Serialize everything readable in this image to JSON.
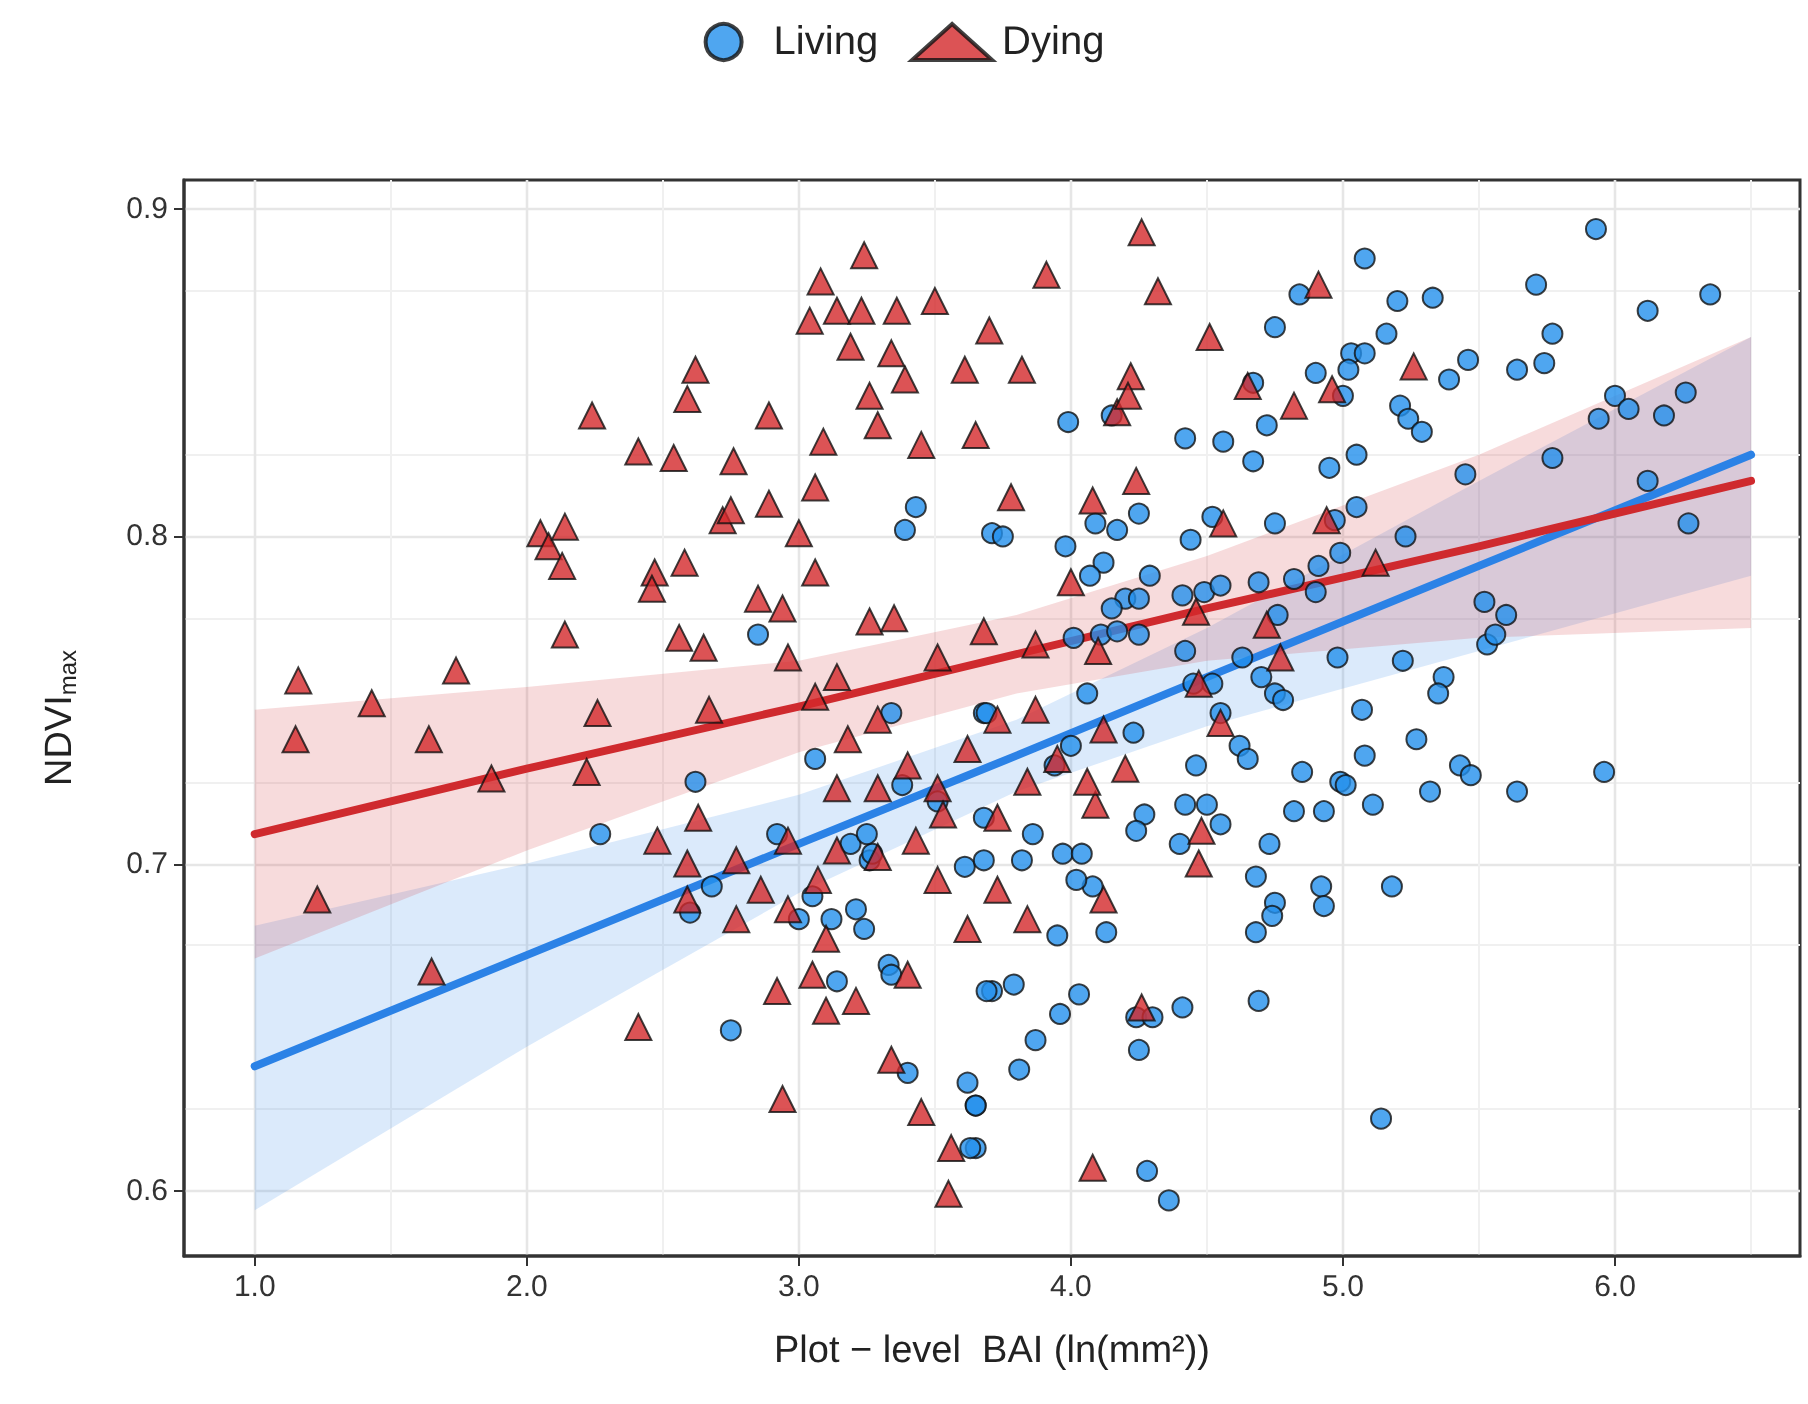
{
  "chart_data": {
    "type": "scatter",
    "xlabel": "Plot − level  BAI (ln(mm²))",
    "ylabel": "NDVI$_{max}$",
    "xlim": [
      0.74,
      6.68
    ],
    "ylim": [
      0.58,
      0.909
    ],
    "xticks": [
      {
        "value": 1,
        "label": "1.0"
      },
      {
        "value": 2,
        "label": "2.0"
      },
      {
        "value": 3,
        "label": "3.0"
      },
      {
        "value": 4,
        "label": "4.0"
      },
      {
        "value": 5,
        "label": "5.0"
      },
      {
        "value": 6,
        "label": "6.0"
      }
    ],
    "yticks": [
      0.6,
      0.7,
      0.8,
      0.9
    ],
    "grid": true,
    "legend": "top",
    "series": [
      {
        "name": "Living",
        "marker": "circle",
        "color": "#2390ec",
        "x": [
          2.27,
          2.62,
          2.75,
          2.85,
          3.43,
          3.39,
          5.93,
          5.08,
          5.71,
          5.33,
          6.35,
          6.12,
          5.2,
          4.84,
          4.75,
          5.16,
          5.77,
          5.03,
          5.08,
          5.02,
          4.9,
          5.46,
          5.64,
          5.74,
          5.39,
          4.67,
          5.0,
          5.21,
          5.24,
          5.29,
          6.0,
          5.94,
          6.05,
          6.18,
          6.26,
          3.99,
          4.15,
          4.42,
          4.56,
          4.72,
          4.67,
          4.95,
          5.05,
          5.77,
          5.45,
          6.12,
          6.27,
          5.05,
          4.97,
          5.23,
          4.75,
          4.99,
          4.91,
          4.25,
          4.09,
          4.17,
          4.44,
          3.98,
          4.12,
          4.07,
          4.29,
          4.2,
          4.25,
          4.15,
          4.41,
          4.49,
          4.55,
          4.69,
          4.82,
          4.9,
          4.76,
          4.01,
          4.11,
          4.17,
          4.25,
          4.42,
          4.63,
          4.7,
          4.75,
          4.78,
          4.98,
          5.22,
          5.37,
          5.35,
          5.52,
          5.6,
          5.53,
          5.56,
          4.06,
          5.07,
          4.52,
          5.27,
          5.08,
          4.85,
          5.43,
          5.47,
          5.64,
          5.96,
          5.32,
          5.11,
          4.99,
          5.01,
          4.82,
          4.93,
          4.46,
          4.62,
          4.65,
          4.42,
          4.5,
          4.55,
          4.27,
          4.24,
          4.4,
          4.73,
          4.68,
          4.75,
          4.74,
          4.92,
          4.93,
          5.18,
          4.68,
          4.69,
          4.41,
          4.24,
          4.3,
          4.25,
          5.14,
          4.28,
          4.36,
          4.03,
          3.96,
          3.87,
          3.81,
          3.79,
          3.71,
          3.95,
          4.13,
          4.08,
          4.02,
          3.97,
          4.04,
          3.82,
          3.86,
          3.68,
          3.94,
          4.23,
          4.0,
          3.65,
          3.65,
          3.34,
          3.06,
          2.92,
          3.26,
          2.68,
          2.6,
          3.05,
          3.0,
          3.12,
          3.21,
          3.24,
          3.33,
          3.34,
          3.14,
          3.4,
          3.62,
          3.65,
          3.63,
          3.69,
          3.61,
          3.68,
          3.27,
          3.19,
          3.25,
          3.38,
          3.51,
          3.68,
          3.71,
          3.75,
          3.69,
          4.55,
          4.45,
          4.52
        ],
        "values": [
          0.709,
          0.725,
          0.649,
          0.77,
          0.809,
          0.802,
          0.894,
          0.885,
          0.877,
          0.873,
          0.874,
          0.869,
          0.872,
          0.874,
          0.864,
          0.862,
          0.862,
          0.856,
          0.856,
          0.851,
          0.85,
          0.854,
          0.851,
          0.853,
          0.848,
          0.847,
          0.843,
          0.84,
          0.836,
          0.832,
          0.843,
          0.836,
          0.839,
          0.837,
          0.844,
          0.835,
          0.837,
          0.83,
          0.829,
          0.834,
          0.823,
          0.821,
          0.825,
          0.824,
          0.819,
          0.817,
          0.804,
          0.809,
          0.805,
          0.8,
          0.804,
          0.795,
          0.791,
          0.807,
          0.804,
          0.802,
          0.799,
          0.797,
          0.792,
          0.788,
          0.788,
          0.781,
          0.781,
          0.778,
          0.782,
          0.783,
          0.785,
          0.786,
          0.787,
          0.783,
          0.776,
          0.769,
          0.77,
          0.771,
          0.77,
          0.765,
          0.763,
          0.757,
          0.752,
          0.75,
          0.763,
          0.762,
          0.757,
          0.752,
          0.78,
          0.776,
          0.767,
          0.77,
          0.752,
          0.747,
          0.806,
          0.738,
          0.733,
          0.728,
          0.73,
          0.727,
          0.722,
          0.728,
          0.722,
          0.718,
          0.725,
          0.724,
          0.716,
          0.716,
          0.73,
          0.736,
          0.732,
          0.718,
          0.718,
          0.712,
          0.715,
          0.71,
          0.706,
          0.706,
          0.696,
          0.688,
          0.684,
          0.693,
          0.687,
          0.693,
          0.679,
          0.658,
          0.656,
          0.653,
          0.653,
          0.643,
          0.622,
          0.606,
          0.597,
          0.66,
          0.654,
          0.646,
          0.637,
          0.663,
          0.661,
          0.678,
          0.679,
          0.693,
          0.695,
          0.703,
          0.703,
          0.701,
          0.709,
          0.714,
          0.73,
          0.74,
          0.736,
          0.626,
          0.613,
          0.746,
          0.732,
          0.709,
          0.701,
          0.693,
          0.685,
          0.69,
          0.683,
          0.683,
          0.686,
          0.68,
          0.669,
          0.666,
          0.664,
          0.636,
          0.633,
          0.626,
          0.613,
          0.661,
          0.699,
          0.701,
          0.703,
          0.706,
          0.709,
          0.724,
          0.719,
          0.746,
          0.801,
          0.8,
          0.746,
          0.746,
          0.755,
          0.755
        ]
      },
      {
        "name": "Dying",
        "marker": "triangle",
        "color": "#d3282b",
        "x": [
          1.15,
          1.16,
          1.23,
          1.43,
          1.65,
          1.64,
          1.74,
          1.87,
          2.05,
          2.08,
          2.14,
          2.13,
          2.14,
          2.24,
          2.26,
          2.22,
          2.41,
          2.41,
          2.47,
          2.46,
          2.54,
          2.59,
          2.62,
          2.58,
          2.56,
          2.65,
          2.67,
          2.72,
          2.75,
          2.76,
          2.63,
          2.59,
          2.85,
          2.89,
          2.89,
          2.94,
          2.94,
          3.04,
          3.08,
          3.06,
          3.09,
          3.0,
          3.06,
          3.19,
          3.14,
          3.23,
          3.26,
          3.29,
          3.24,
          3.34,
          3.36,
          3.39,
          3.45,
          3.5,
          3.61,
          3.7,
          3.65,
          3.78,
          3.82,
          3.91,
          4.08,
          4.17,
          4.22,
          4.26,
          4.32,
          4.21,
          4.24,
          4.1,
          4.09,
          4.12,
          4.08,
          4.46,
          4.51,
          4.56,
          4.48,
          4.47,
          4.55,
          4.65,
          4.82,
          4.91,
          4.96,
          5.26,
          5.12,
          4.72,
          4.77,
          4.94,
          4.47,
          4.26,
          2.96,
          3.06,
          3.14,
          3.26,
          3.35,
          3.51,
          3.68,
          3.87,
          4.0,
          3.18,
          3.29,
          3.4,
          3.51,
          3.62,
          3.73,
          3.84,
          3.95,
          4.06,
          2.96,
          3.07,
          2.96,
          2.86,
          2.77,
          3.14,
          3.29,
          3.43,
          3.51,
          3.62,
          3.73,
          3.84,
          2.92,
          3.05,
          3.1,
          3.21,
          3.34,
          3.4,
          3.45,
          3.56,
          3.55,
          3.14,
          3.29,
          2.77,
          3.1,
          3.73,
          3.87,
          4.12,
          4.2,
          2.48,
          2.59,
          3.53
        ],
        "values": [
          0.738,
          0.756,
          0.689,
          0.749,
          0.667,
          0.738,
          0.759,
          0.726,
          0.801,
          0.797,
          0.803,
          0.791,
          0.77,
          0.837,
          0.746,
          0.728,
          0.826,
          0.65,
          0.789,
          0.784,
          0.824,
          0.842,
          0.851,
          0.792,
          0.769,
          0.766,
          0.747,
          0.805,
          0.808,
          0.823,
          0.714,
          0.7,
          0.781,
          0.837,
          0.81,
          0.778,
          0.628,
          0.866,
          0.878,
          0.815,
          0.829,
          0.801,
          0.789,
          0.858,
          0.869,
          0.869,
          0.843,
          0.834,
          0.886,
          0.856,
          0.869,
          0.848,
          0.828,
          0.872,
          0.851,
          0.863,
          0.831,
          0.812,
          0.851,
          0.88,
          0.811,
          0.838,
          0.849,
          0.893,
          0.875,
          0.843,
          0.817,
          0.765,
          0.718,
          0.689,
          0.607,
          0.777,
          0.861,
          0.804,
          0.71,
          0.755,
          0.743,
          0.846,
          0.84,
          0.877,
          0.845,
          0.852,
          0.792,
          0.773,
          0.763,
          0.805,
          0.7,
          0.656,
          0.763,
          0.751,
          0.757,
          0.774,
          0.775,
          0.763,
          0.771,
          0.767,
          0.786,
          0.738,
          0.744,
          0.73,
          0.723,
          0.735,
          0.714,
          0.725,
          0.732,
          0.725,
          0.686,
          0.695,
          0.707,
          0.692,
          0.683,
          0.704,
          0.702,
          0.707,
          0.695,
          0.68,
          0.692,
          0.683,
          0.661,
          0.666,
          0.655,
          0.658,
          0.64,
          0.666,
          0.624,
          0.613,
          0.599,
          0.723,
          0.723,
          0.701,
          0.677,
          0.744,
          0.747,
          0.741,
          0.729,
          0.707,
          0.689,
          0.715
        ]
      },
      {
        "type": "line",
        "color": "#2b82e6",
        "x": [
          1,
          2,
          3,
          3.8,
          4.5,
          5.5,
          6.5
        ],
        "values": [
          0.638,
          0.672,
          0.706,
          0.733,
          0.757,
          0.791,
          0.825
        ],
        "lower": [
          0.594,
          0.644,
          0.691,
          0.722,
          0.742,
          0.765,
          0.788
        ],
        "upper": [
          0.681,
          0.7,
          0.721,
          0.744,
          0.772,
          0.817,
          0.861
        ]
      },
      {
        "type": "line",
        "color": "#cf2a2e",
        "x": [
          1,
          2,
          3,
          3.8,
          4.5,
          5.5,
          6.5
        ],
        "values": [
          0.709,
          0.729,
          0.748,
          0.764,
          0.778,
          0.797,
          0.817
        ],
        "lower": [
          0.671,
          0.704,
          0.734,
          0.752,
          0.762,
          0.769,
          0.772
        ],
        "upper": [
          0.747,
          0.754,
          0.762,
          0.776,
          0.794,
          0.825,
          0.861
        ]
      }
    ]
  }
}
